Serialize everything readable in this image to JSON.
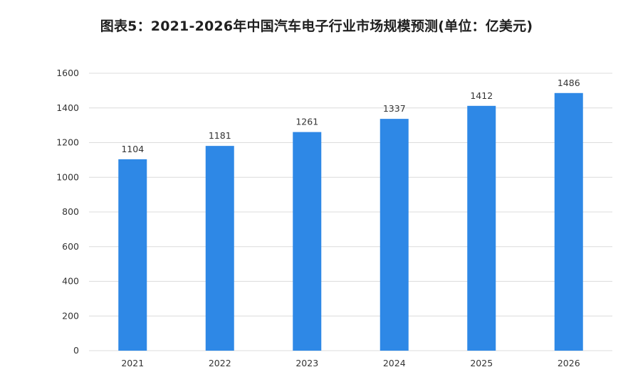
{
  "title": "图表5：2021-2026年中国汽车电子行业市场规模预测(单位：亿美元)",
  "chart_data": {
    "type": "bar",
    "categories": [
      "2021",
      "2022",
      "2023",
      "2024",
      "2025",
      "2026"
    ],
    "values": [
      1104,
      1181,
      1261,
      1337,
      1412,
      1486
    ],
    "ylim": [
      0,
      1600
    ],
    "yticks": [
      0,
      200,
      400,
      600,
      800,
      1000,
      1200,
      1400,
      1600
    ],
    "grid": true,
    "bar_color": "#2E88E6",
    "gridline_color": "#DCDCDC"
  }
}
